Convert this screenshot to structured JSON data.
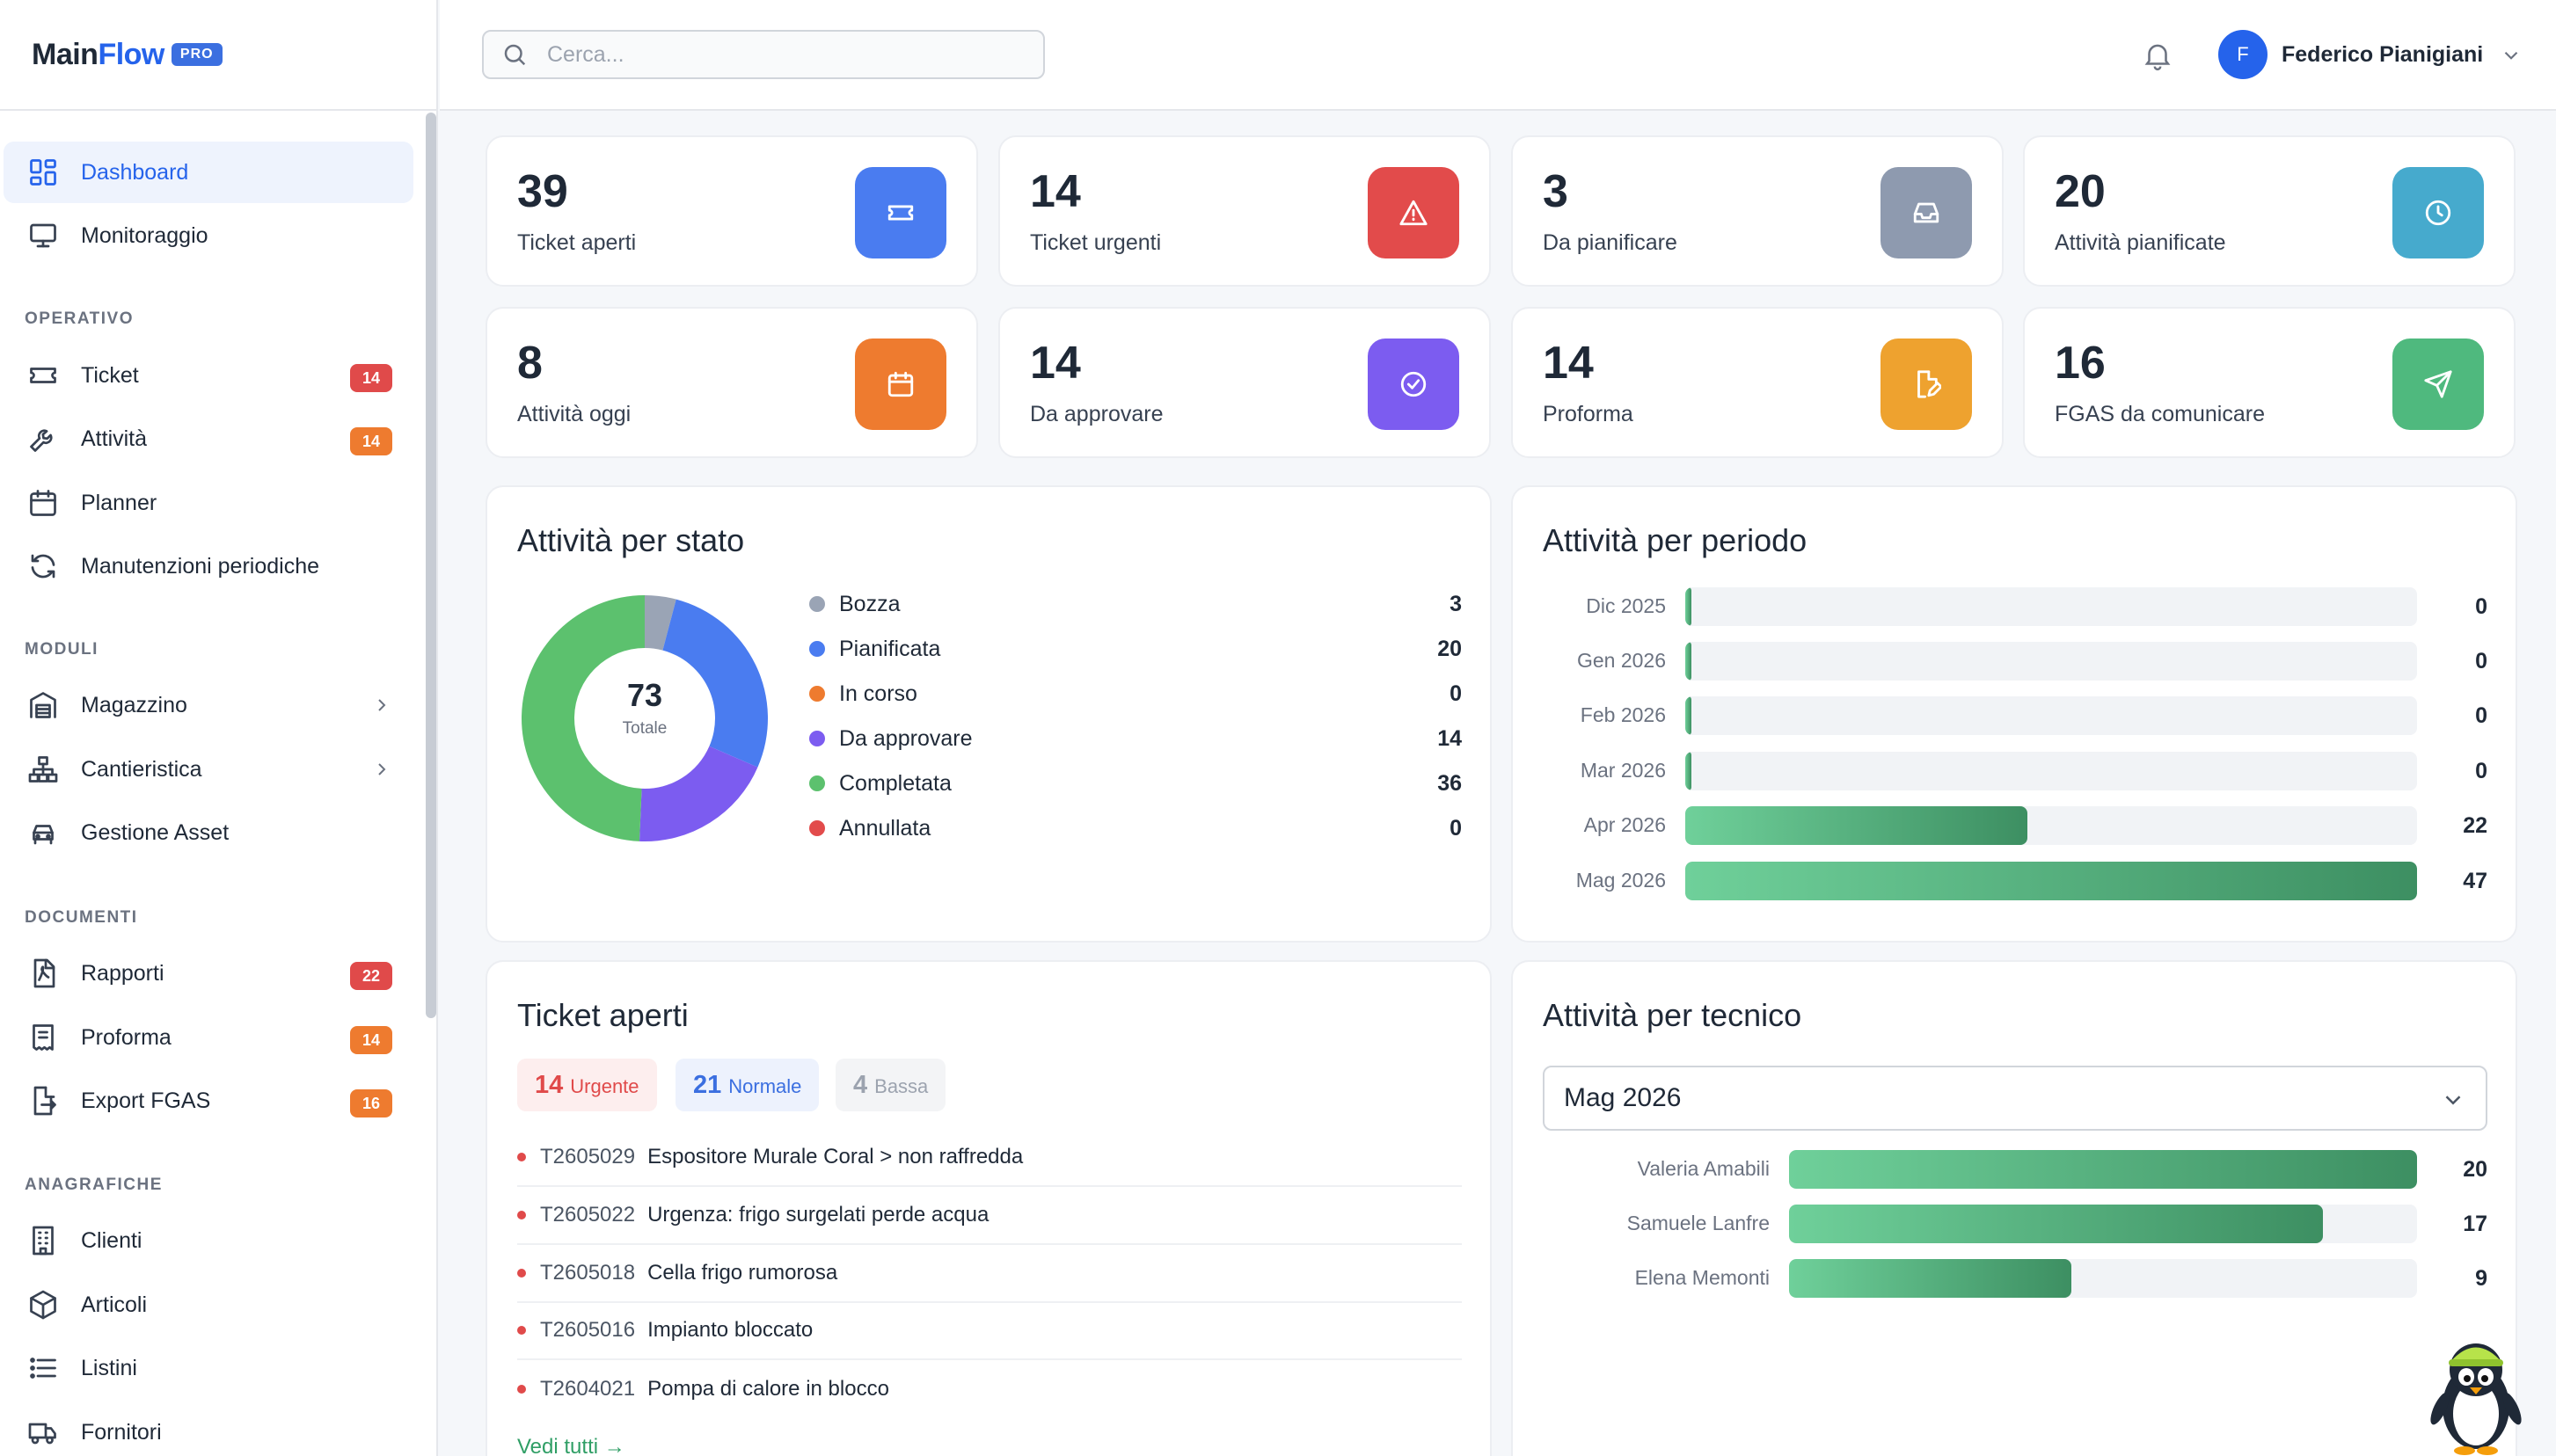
{
  "app": {
    "logo_main": "Main",
    "logo_accent": "Flow",
    "logo_badge": "PRO"
  },
  "sidebar": {
    "top_items": [
      {
        "label": "Dashboard",
        "icon": "dashboard-icon",
        "active": true
      },
      {
        "label": "Monitoraggio",
        "icon": "monitor-icon"
      }
    ],
    "sections": [
      {
        "title": "OPERATIVO",
        "items": [
          {
            "label": "Ticket",
            "icon": "ticket-icon",
            "badge": "14",
            "badge_color": "red"
          },
          {
            "label": "Attività",
            "icon": "wrench-icon",
            "badge": "14",
            "badge_color": "orange"
          },
          {
            "label": "Planner",
            "icon": "calendar-icon"
          },
          {
            "label": "Manutenzioni periodiche",
            "icon": "refresh-icon"
          }
        ]
      },
      {
        "title": "MODULI",
        "items": [
          {
            "label": "Magazzino",
            "icon": "warehouse-icon",
            "chevron": true
          },
          {
            "label": "Cantieristica",
            "icon": "sitemap-icon",
            "chevron": true
          },
          {
            "label": "Gestione Asset",
            "icon": "car-icon"
          }
        ]
      },
      {
        "title": "DOCUMENTI",
        "items": [
          {
            "label": "Rapporti",
            "icon": "pdf-file-icon",
            "badge": "22",
            "badge_color": "red"
          },
          {
            "label": "Proforma",
            "icon": "receipt-icon",
            "badge": "14",
            "badge_color": "orange"
          },
          {
            "label": "Export FGAS",
            "icon": "file-export-icon",
            "badge": "16",
            "badge_color": "orange"
          }
        ]
      },
      {
        "title": "ANAGRAFICHE",
        "items": [
          {
            "label": "Clienti",
            "icon": "building-icon"
          },
          {
            "label": "Articoli",
            "icon": "box-icon"
          },
          {
            "label": "Listini",
            "icon": "list-icon"
          },
          {
            "label": "Fornitori",
            "icon": "truck-icon"
          }
        ]
      }
    ]
  },
  "topbar": {
    "search_placeholder": "Cerca...",
    "user_initial": "F",
    "user_name": "Federico Pianigiani"
  },
  "stats": [
    {
      "value": "39",
      "label": "Ticket aperti",
      "color": "#4a7cf0",
      "icon": "ticket-icon"
    },
    {
      "value": "14",
      "label": "Ticket urgenti",
      "color": "#e24b4b",
      "icon": "alert-triangle-icon"
    },
    {
      "value": "3",
      "label": "Da pianificare",
      "color": "#8e9aaf",
      "icon": "inbox-icon"
    },
    {
      "value": "20",
      "label": "Attività pianificate",
      "color": "#46aacd",
      "icon": "clock-icon"
    },
    {
      "value": "8",
      "label": "Attività oggi",
      "color": "#ee7b2f",
      "icon": "calendar-icon"
    },
    {
      "value": "14",
      "label": "Da approvare",
      "color": "#7c5cf0",
      "icon": "check-circle-icon"
    },
    {
      "value": "14",
      "label": "Proforma",
      "color": "#eea22f",
      "icon": "file-edit-icon"
    },
    {
      "value": "16",
      "label": "FGAS da comunicare",
      "color": "#4fb97e",
      "icon": "send-icon"
    }
  ],
  "status_panel": {
    "title": "Attività per stato",
    "total": "73",
    "total_label": "Totale",
    "items": [
      {
        "label": "Bozza",
        "value": 3,
        "color": "#9aa4b5"
      },
      {
        "label": "Pianificata",
        "value": 20,
        "color": "#4a7cf0"
      },
      {
        "label": "In corso",
        "value": 0,
        "color": "#ee7b2f"
      },
      {
        "label": "Da approvare",
        "value": 14,
        "color": "#7c5cf0"
      },
      {
        "label": "Completata",
        "value": 36,
        "color": "#5cc16e"
      },
      {
        "label": "Annullata",
        "value": 0,
        "color": "#e24b4b"
      }
    ]
  },
  "period_panel": {
    "title": "Attività per periodo",
    "max": 47,
    "rows": [
      {
        "label": "Dic 2025",
        "value": 0
      },
      {
        "label": "Gen 2026",
        "value": 0
      },
      {
        "label": "Feb 2026",
        "value": 0
      },
      {
        "label": "Mar 2026",
        "value": 0
      },
      {
        "label": "Apr 2026",
        "value": 22
      },
      {
        "label": "Mag 2026",
        "value": 47
      }
    ]
  },
  "tickets_panel": {
    "title": "Ticket aperti",
    "chips": [
      {
        "count": "14",
        "label": "Urgente",
        "fg": "#e04a4a",
        "bg": "#fdeeee"
      },
      {
        "count": "21",
        "label": "Normale",
        "fg": "#3b6fe0",
        "bg": "#edf2fd"
      },
      {
        "count": "4",
        "label": "Bassa",
        "fg": "#9ca3af",
        "bg": "#f3f4f6"
      }
    ],
    "rows": [
      {
        "code": "T2605029",
        "desc": "Espositore Murale Coral > non raffredda"
      },
      {
        "code": "T2605022",
        "desc": "Urgenza: frigo surgelati perde acqua"
      },
      {
        "code": "T2605018",
        "desc": "Cella frigo rumorosa"
      },
      {
        "code": "T2605016",
        "desc": "Impianto bloccato"
      },
      {
        "code": "T2604021",
        "desc": "Pompa di calore in blocco"
      }
    ],
    "view_all": "Vedi tutti →"
  },
  "tech_panel": {
    "title": "Attività per tecnico",
    "select_value": "Mag 2026",
    "max": 20,
    "rows": [
      {
        "label": "Valeria Amabili",
        "value": 20
      },
      {
        "label": "Samuele Lanfre",
        "value": 17
      },
      {
        "label": "Elena Memonti",
        "value": 9
      }
    ]
  }
}
